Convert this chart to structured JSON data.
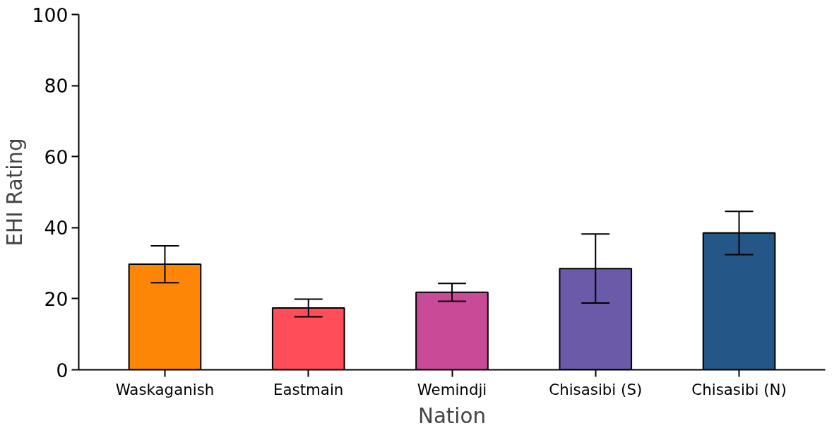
{
  "chart_data": {
    "type": "bar",
    "xlabel": "Nation",
    "ylabel": "EHI Rating",
    "categories": [
      "Waskaganish",
      "Eastmain",
      "Wemindji",
      "Chisasibi (S)",
      "Chisasibi (N)"
    ],
    "values": [
      29.7,
      17.4,
      21.8,
      28.5,
      38.5
    ],
    "errors": [
      5.2,
      2.5,
      2.5,
      9.7,
      6.1
    ],
    "colors": [
      "#fd8607",
      "#ff4d5a",
      "#c94a96",
      "#6a5aa8",
      "#245687"
    ],
    "ylim": [
      0,
      100
    ],
    "yticks": [
      0,
      20,
      40,
      60,
      80,
      100
    ],
    "grid": false
  }
}
